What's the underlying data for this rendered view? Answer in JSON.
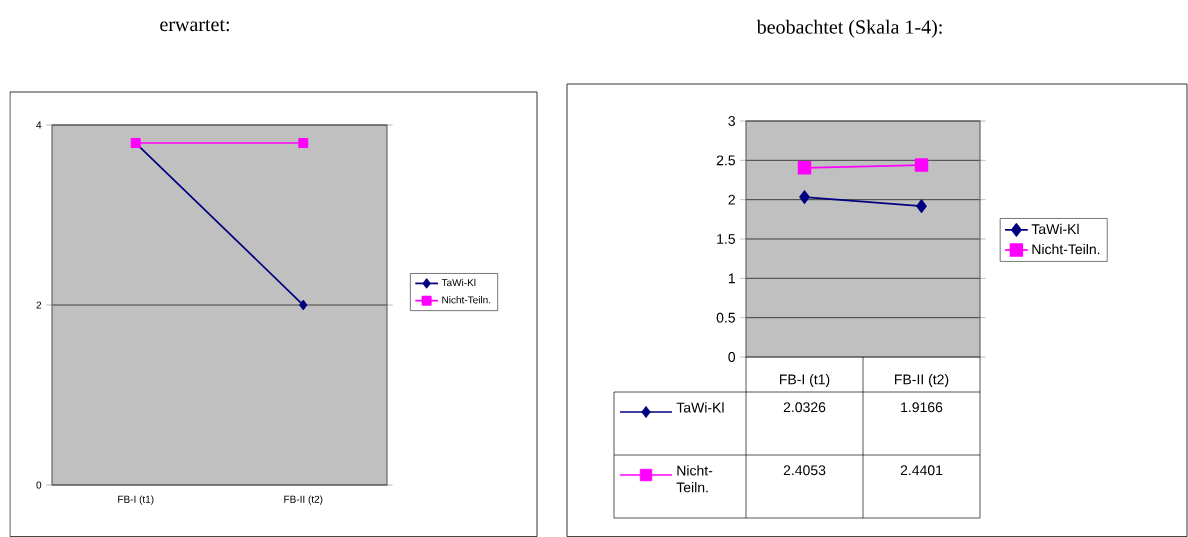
{
  "chart_data": [
    {
      "type": "line",
      "title": "erwartet:",
      "categories": [
        "FB-I (t1)",
        "FB-II (t2)"
      ],
      "series": [
        {
          "name": "TaWi-Kl",
          "color": "#000080",
          "marker": "diamond",
          "values": [
            3.8,
            2
          ]
        },
        {
          "name": "Nicht-Teiln.",
          "color": "#ff00ff",
          "marker": "square",
          "values": [
            3.8,
            3.8
          ]
        }
      ],
      "ylim": [
        0,
        4
      ],
      "yticks": [
        0,
        2,
        4
      ],
      "grid": "y",
      "legend": "right"
    },
    {
      "type": "line",
      "title": "beobachtet (Skala 1-4):",
      "categories": [
        "FB-I (t1)",
        "FB-II (t2)"
      ],
      "series": [
        {
          "name": "TaWi-Kl",
          "color": "#000080",
          "marker": "diamond",
          "values": [
            2.0326,
            1.9166
          ],
          "value_labels": [
            "2.0326",
            "1.9166"
          ]
        },
        {
          "name": "Nicht-Teiln.",
          "color": "#ff00ff",
          "marker": "square",
          "values": [
            2.4053,
            2.4401
          ],
          "value_labels": [
            "2.4053",
            "2.4401"
          ]
        }
      ],
      "ylim": [
        0,
        3
      ],
      "yticks": [
        0,
        0.5,
        1,
        1.5,
        2,
        2.5,
        3
      ],
      "grid": "y",
      "legend": "right"
    }
  ]
}
